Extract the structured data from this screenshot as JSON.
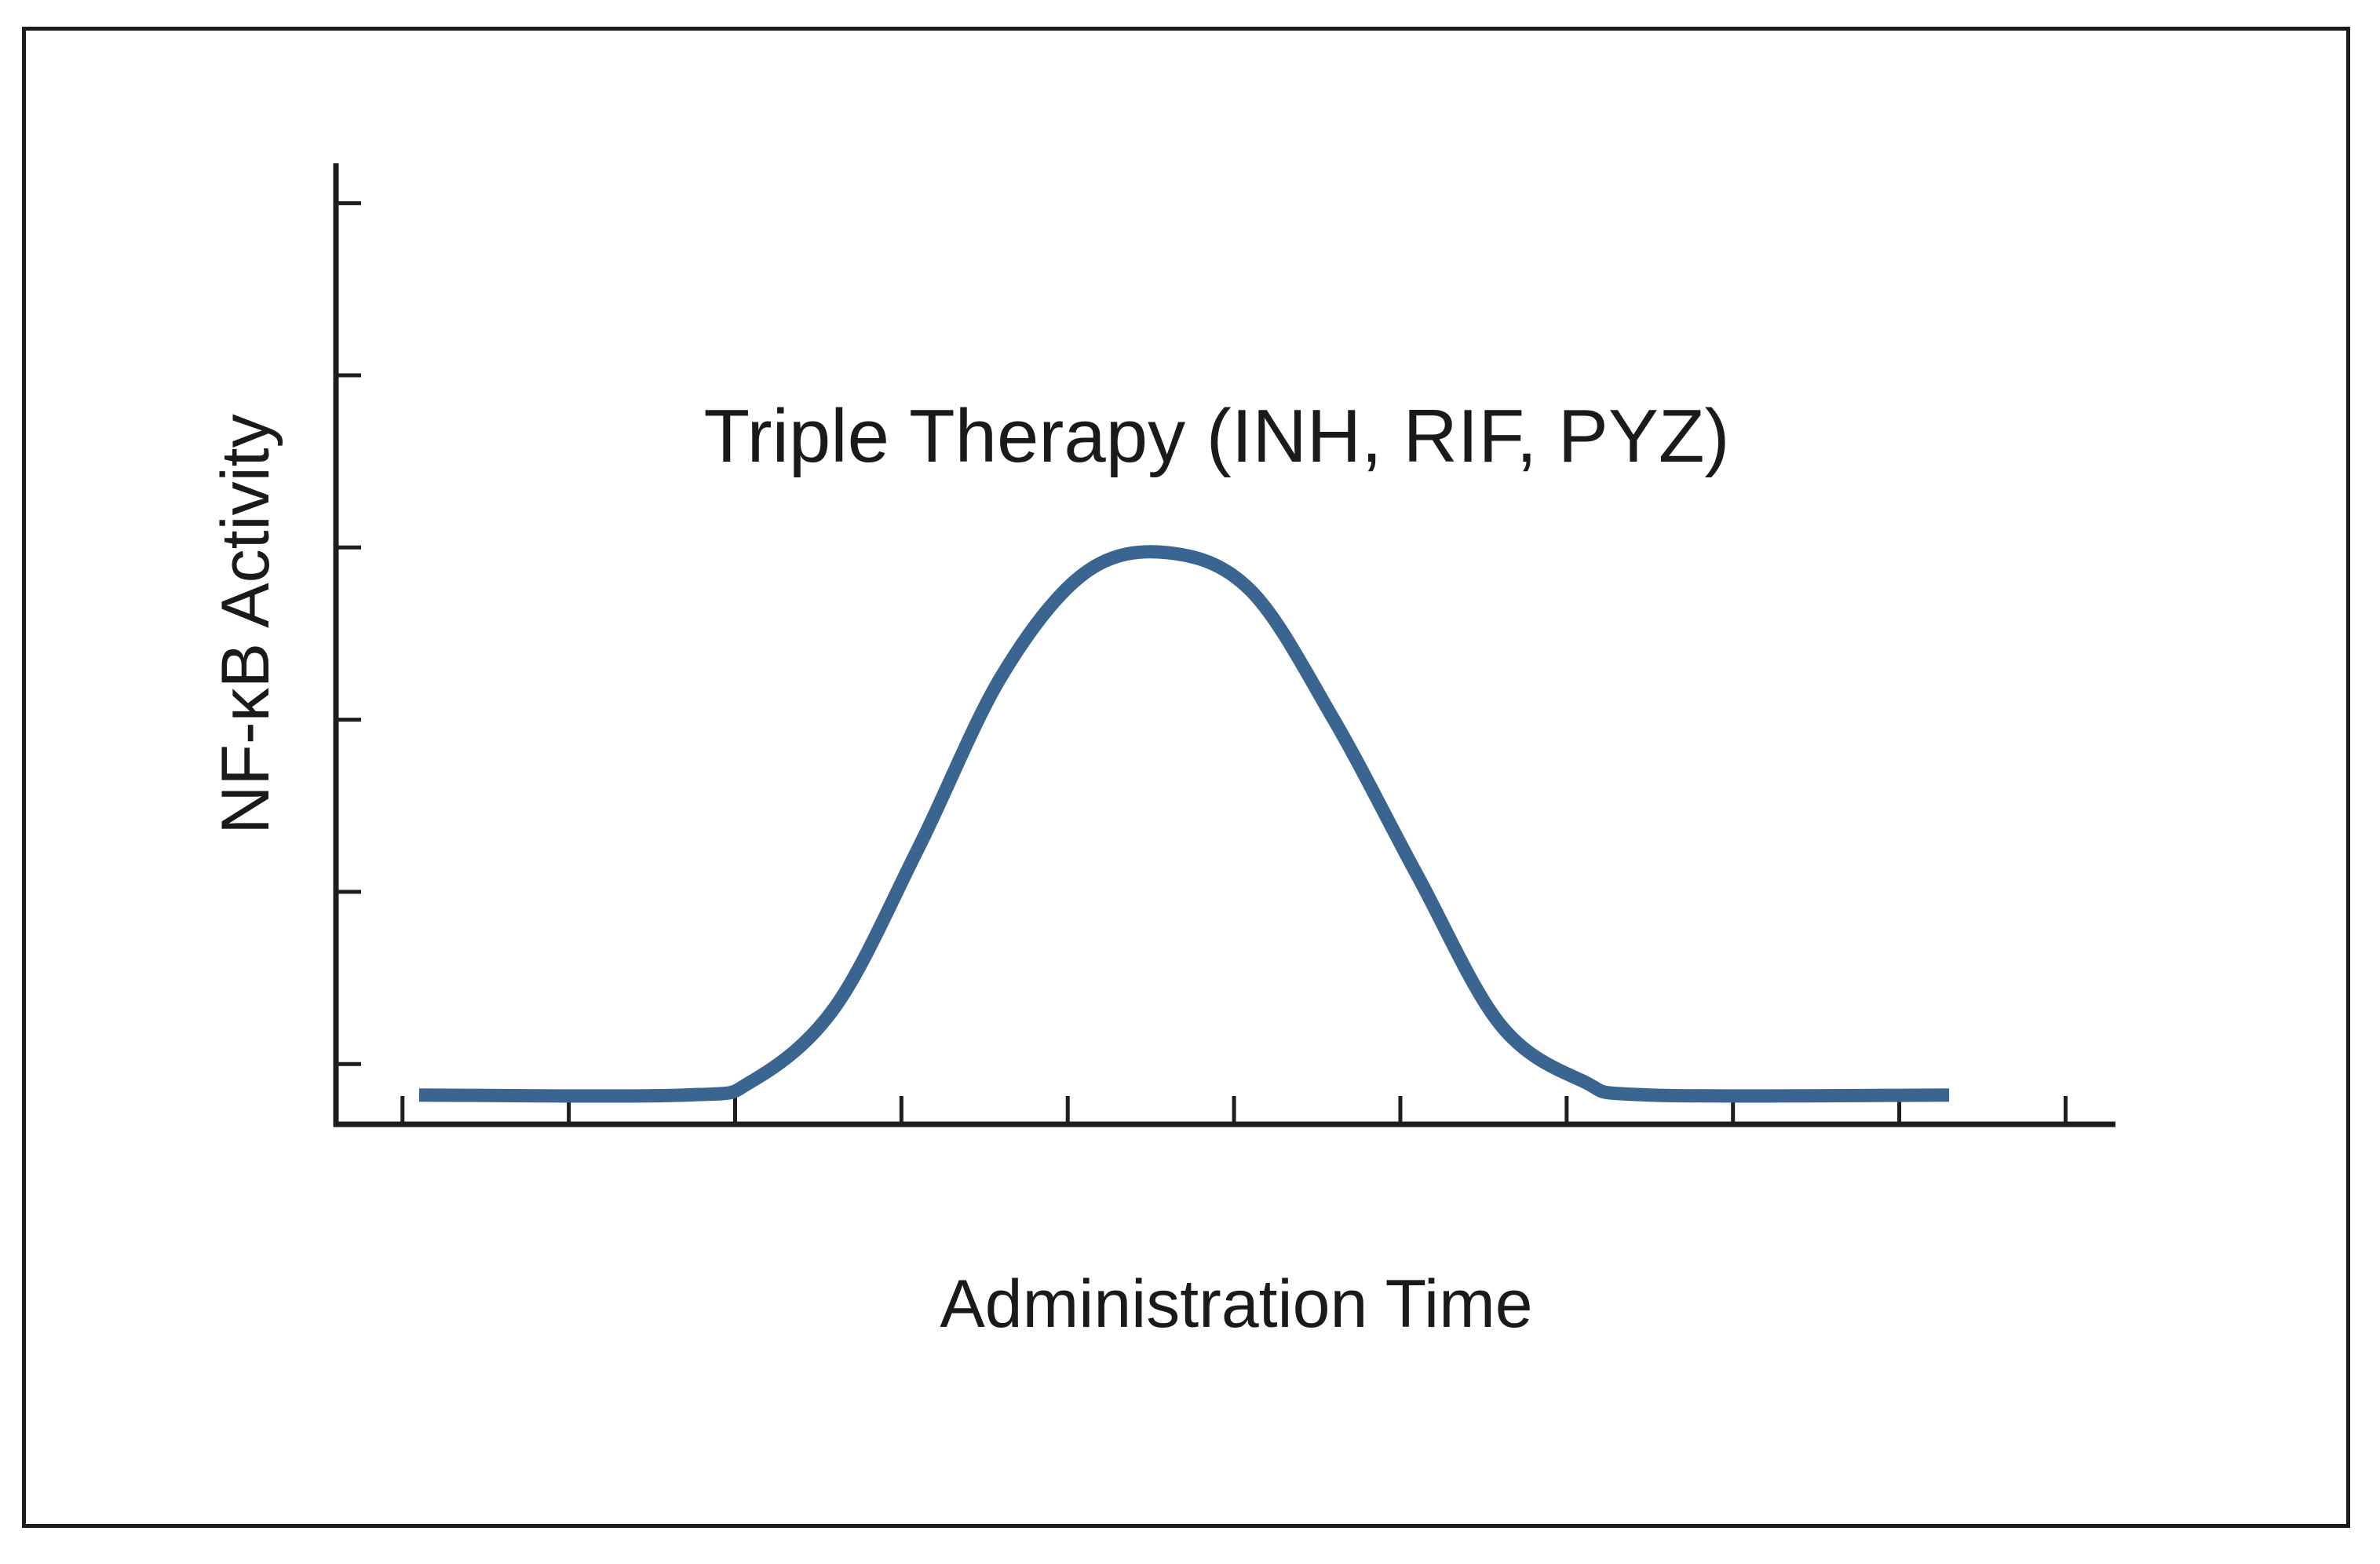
{
  "chart_data": {
    "type": "line",
    "title": "Triple Therapy (INH, RIF, PYZ)",
    "xlabel": "Administration Time",
    "ylabel": "NF-κB Activity",
    "grid": false,
    "x_tick_labels": [],
    "y_tick_labels": [],
    "xlim": [
      0,
      10.7
    ],
    "ylim": [
      0,
      5.8
    ],
    "series": [
      {
        "color": "#3b6591",
        "points": [
          {
            "x": 0.5,
            "y": 0.17
          },
          {
            "x": 2.1,
            "y": 0.17
          },
          {
            "x": 2.5,
            "y": 0.25
          },
          {
            "x": 3.0,
            "y": 0.68
          },
          {
            "x": 3.5,
            "y": 1.6
          },
          {
            "x": 4.0,
            "y": 2.6
          },
          {
            "x": 4.5,
            "y": 3.2
          },
          {
            "x": 5.0,
            "y": 3.32
          },
          {
            "x": 5.5,
            "y": 3.1
          },
          {
            "x": 6.0,
            "y": 2.35
          },
          {
            "x": 6.5,
            "y": 1.45
          },
          {
            "x": 7.0,
            "y": 0.58
          },
          {
            "x": 7.5,
            "y": 0.25
          },
          {
            "x": 7.9,
            "y": 0.17
          },
          {
            "x": 9.7,
            "y": 0.17
          }
        ]
      }
    ]
  }
}
